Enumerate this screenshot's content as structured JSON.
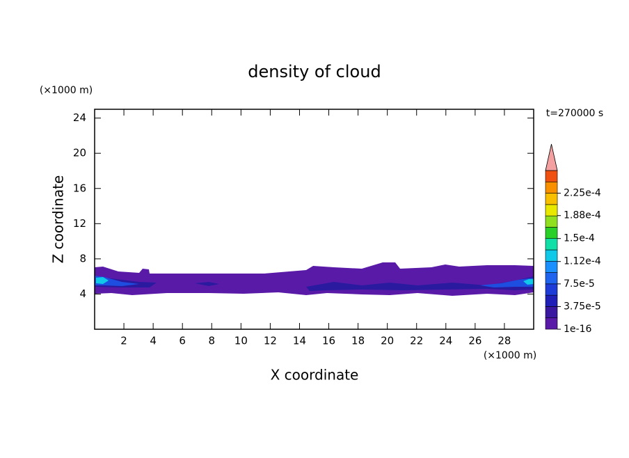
{
  "chart_data": {
    "type": "contour",
    "title": "density of cloud",
    "x_label": "X coordinate",
    "y_label": "Z coordinate",
    "x_unit": "(×1000 m)",
    "y_unit": "(×1000 m)",
    "time_label": "t=270000 s",
    "xlim": [
      0,
      30
    ],
    "xticks": [
      2,
      4,
      6,
      8,
      10,
      12,
      14,
      16,
      18,
      20,
      22,
      24,
      26,
      28
    ],
    "ylim": [
      0,
      25
    ],
    "yticks": [
      4,
      8,
      12,
      16,
      20,
      24
    ],
    "colorbar": {
      "clim": [
        0,
        0.0002625
      ],
      "ticks": [
        1e-16,
        {
          "value": 3.75e-05,
          "label": "3.75e-5"
        },
        {
          "value": 7.5e-05,
          "label": "7.5e-5"
        },
        {
          "value": 0.000112,
          "label": "1.12e-4"
        },
        {
          "value": 0.00015,
          "label": "1.5e-4"
        },
        {
          "value": 0.000188,
          "label": "1.88e-4"
        },
        {
          "value": 0.000225,
          "label": "2.25e-4"
        }
      ],
      "colors": [
        "#5a1aa8",
        "#3a18a0",
        "#2020b8",
        "#1e3cd8",
        "#1e64ee",
        "#1a90ff",
        "#10c8e8",
        "#10e0a8",
        "#28d028",
        "#90e020",
        "#e8e800",
        "#f8c000",
        "#f89000",
        "#f05010"
      ],
      "extend_color": "#f4a0a0"
    }
  }
}
